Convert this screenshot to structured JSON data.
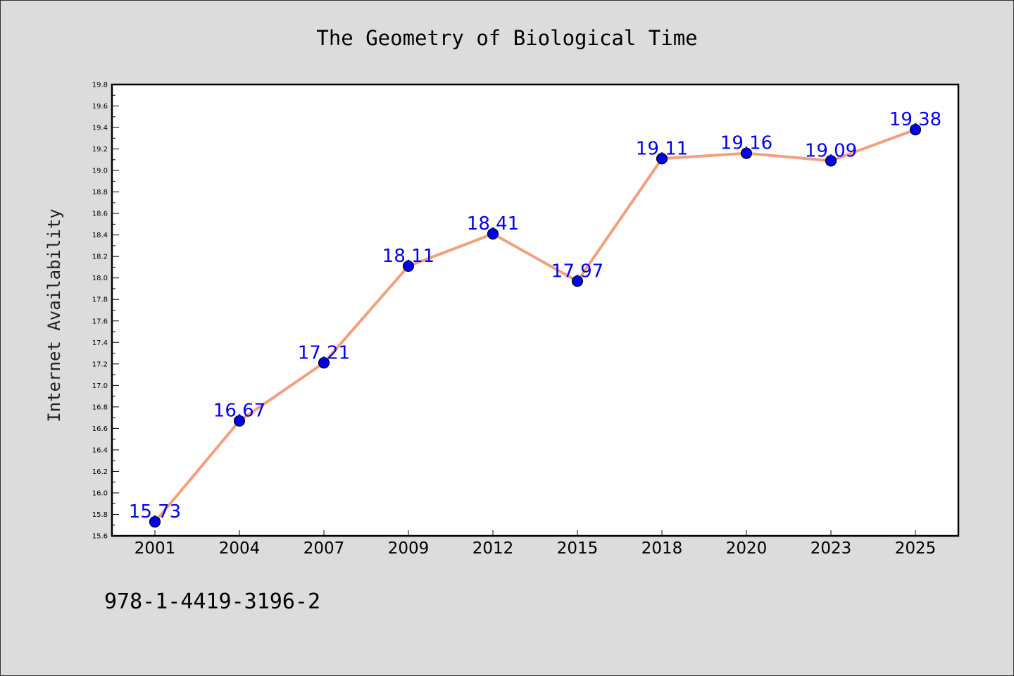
{
  "chart_data": {
    "type": "line",
    "title": "The Geometry of Biological Time",
    "xlabel": "",
    "ylabel": "Internet Availability",
    "categories": [
      "2001",
      "2004",
      "2007",
      "2009",
      "2012",
      "2015",
      "2018",
      "2020",
      "2023",
      "2025"
    ],
    "values": [
      15.73,
      16.67,
      17.21,
      18.11,
      18.41,
      17.97,
      19.11,
      19.16,
      19.09,
      19.38
    ],
    "data_labels": [
      "15.73",
      "16.67",
      "17.21",
      "18.11",
      "18.41",
      "17.97",
      "19.11",
      "19.16",
      "19.09",
      "19.38"
    ],
    "ylim": [
      15.6,
      19.8
    ],
    "yticks": [
      "15.6",
      "15.8",
      "16.0",
      "16.2",
      "16.4",
      "16.6",
      "16.8",
      "17.0",
      "17.2",
      "17.4",
      "17.6",
      "17.8",
      "18.0",
      "18.2",
      "18.4",
      "18.6",
      "18.8",
      "19.0",
      "19.2",
      "19.4",
      "19.6",
      "19.8"
    ],
    "grid": false,
    "legend": "none",
    "colors": {
      "line": "#f4a07c",
      "marker": "#0000ee",
      "label": "#0000ff",
      "background": "#dcdcdc",
      "plot_background": "#ffffff"
    }
  },
  "footer": {
    "text": "978-1-4419-3196-2"
  }
}
